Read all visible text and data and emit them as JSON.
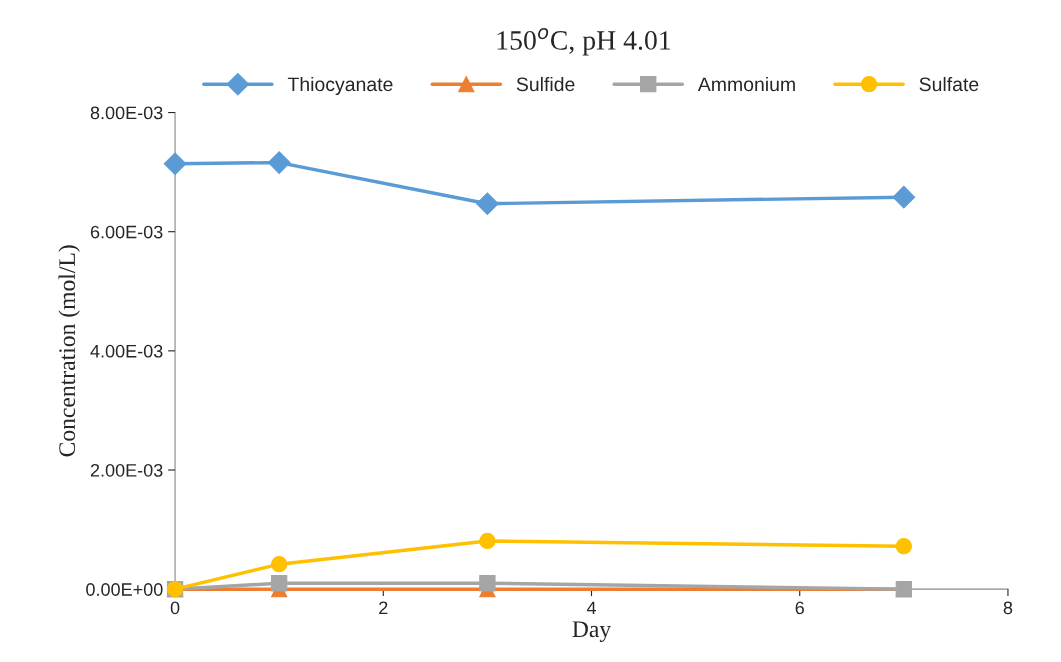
{
  "chart_data": {
    "type": "line",
    "title": "150$^{o}$C, pH 4.01",
    "xlabel": "Day",
    "ylabel": "Concentration (mol/L)",
    "x": [
      0,
      1,
      3,
      7
    ],
    "series": [
      {
        "name": "Thiocyanate",
        "color": "#5b9bd5",
        "marker": "diamond",
        "values": [
          0.00714,
          0.00716,
          0.00647,
          0.00658
        ]
      },
      {
        "name": "Sulfide",
        "color": "#ed7d31",
        "marker": "triangle",
        "values": [
          0,
          0,
          0,
          0
        ]
      },
      {
        "name": "Ammonium",
        "color": "#a5a5a5",
        "marker": "square",
        "values": [
          0,
          0.0001,
          0.0001,
          0
        ]
      },
      {
        "name": "Sulfate",
        "color": "#ffc000",
        "marker": "circle",
        "values": [
          0,
          0.00042,
          0.00081,
          0.00072
        ]
      }
    ],
    "xlim": [
      0,
      8
    ],
    "xticks": [
      0,
      2,
      4,
      6,
      8
    ],
    "ylim": [
      0,
      0.008
    ],
    "yticks": [
      {
        "value": 0,
        "label": "0.00E+00"
      },
      {
        "value": 0.002,
        "label": "2.00E-03"
      },
      {
        "value": 0.004,
        "label": "4.00E-03"
      },
      {
        "value": 0.006,
        "label": "6.00E-03"
      },
      {
        "value": 0.008,
        "label": "8.00E-03"
      }
    ],
    "grid": false,
    "legend": "top",
    "line_style": "solid"
  }
}
